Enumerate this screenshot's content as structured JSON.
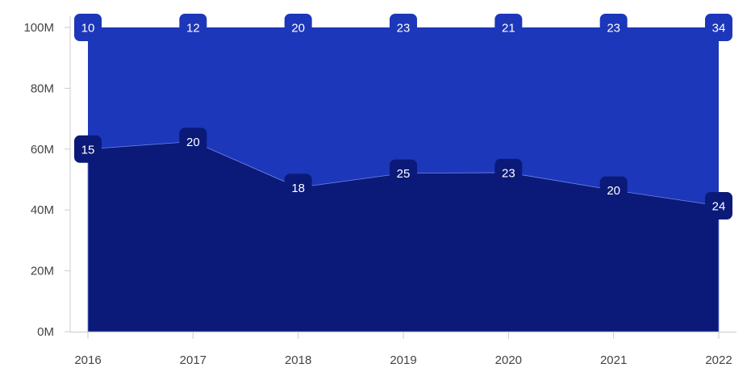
{
  "chart_data": {
    "type": "area",
    "stacking": "percent",
    "categories": [
      "2016",
      "2017",
      "2018",
      "2019",
      "2020",
      "2021",
      "2022"
    ],
    "series": [
      {
        "values": [
          15,
          20,
          18,
          25,
          23,
          20,
          24
        ],
        "color": "#0b1a78"
      },
      {
        "values": [
          10,
          12,
          20,
          23,
          21,
          23,
          34
        ],
        "color": "#1c37b9"
      }
    ],
    "y_ticks": [
      "0M",
      "20M",
      "40M",
      "60M",
      "80M",
      "100M"
    ],
    "ylim": [
      0,
      100
    ],
    "grid": false,
    "title": "",
    "xlabel": "",
    "ylabel": ""
  }
}
